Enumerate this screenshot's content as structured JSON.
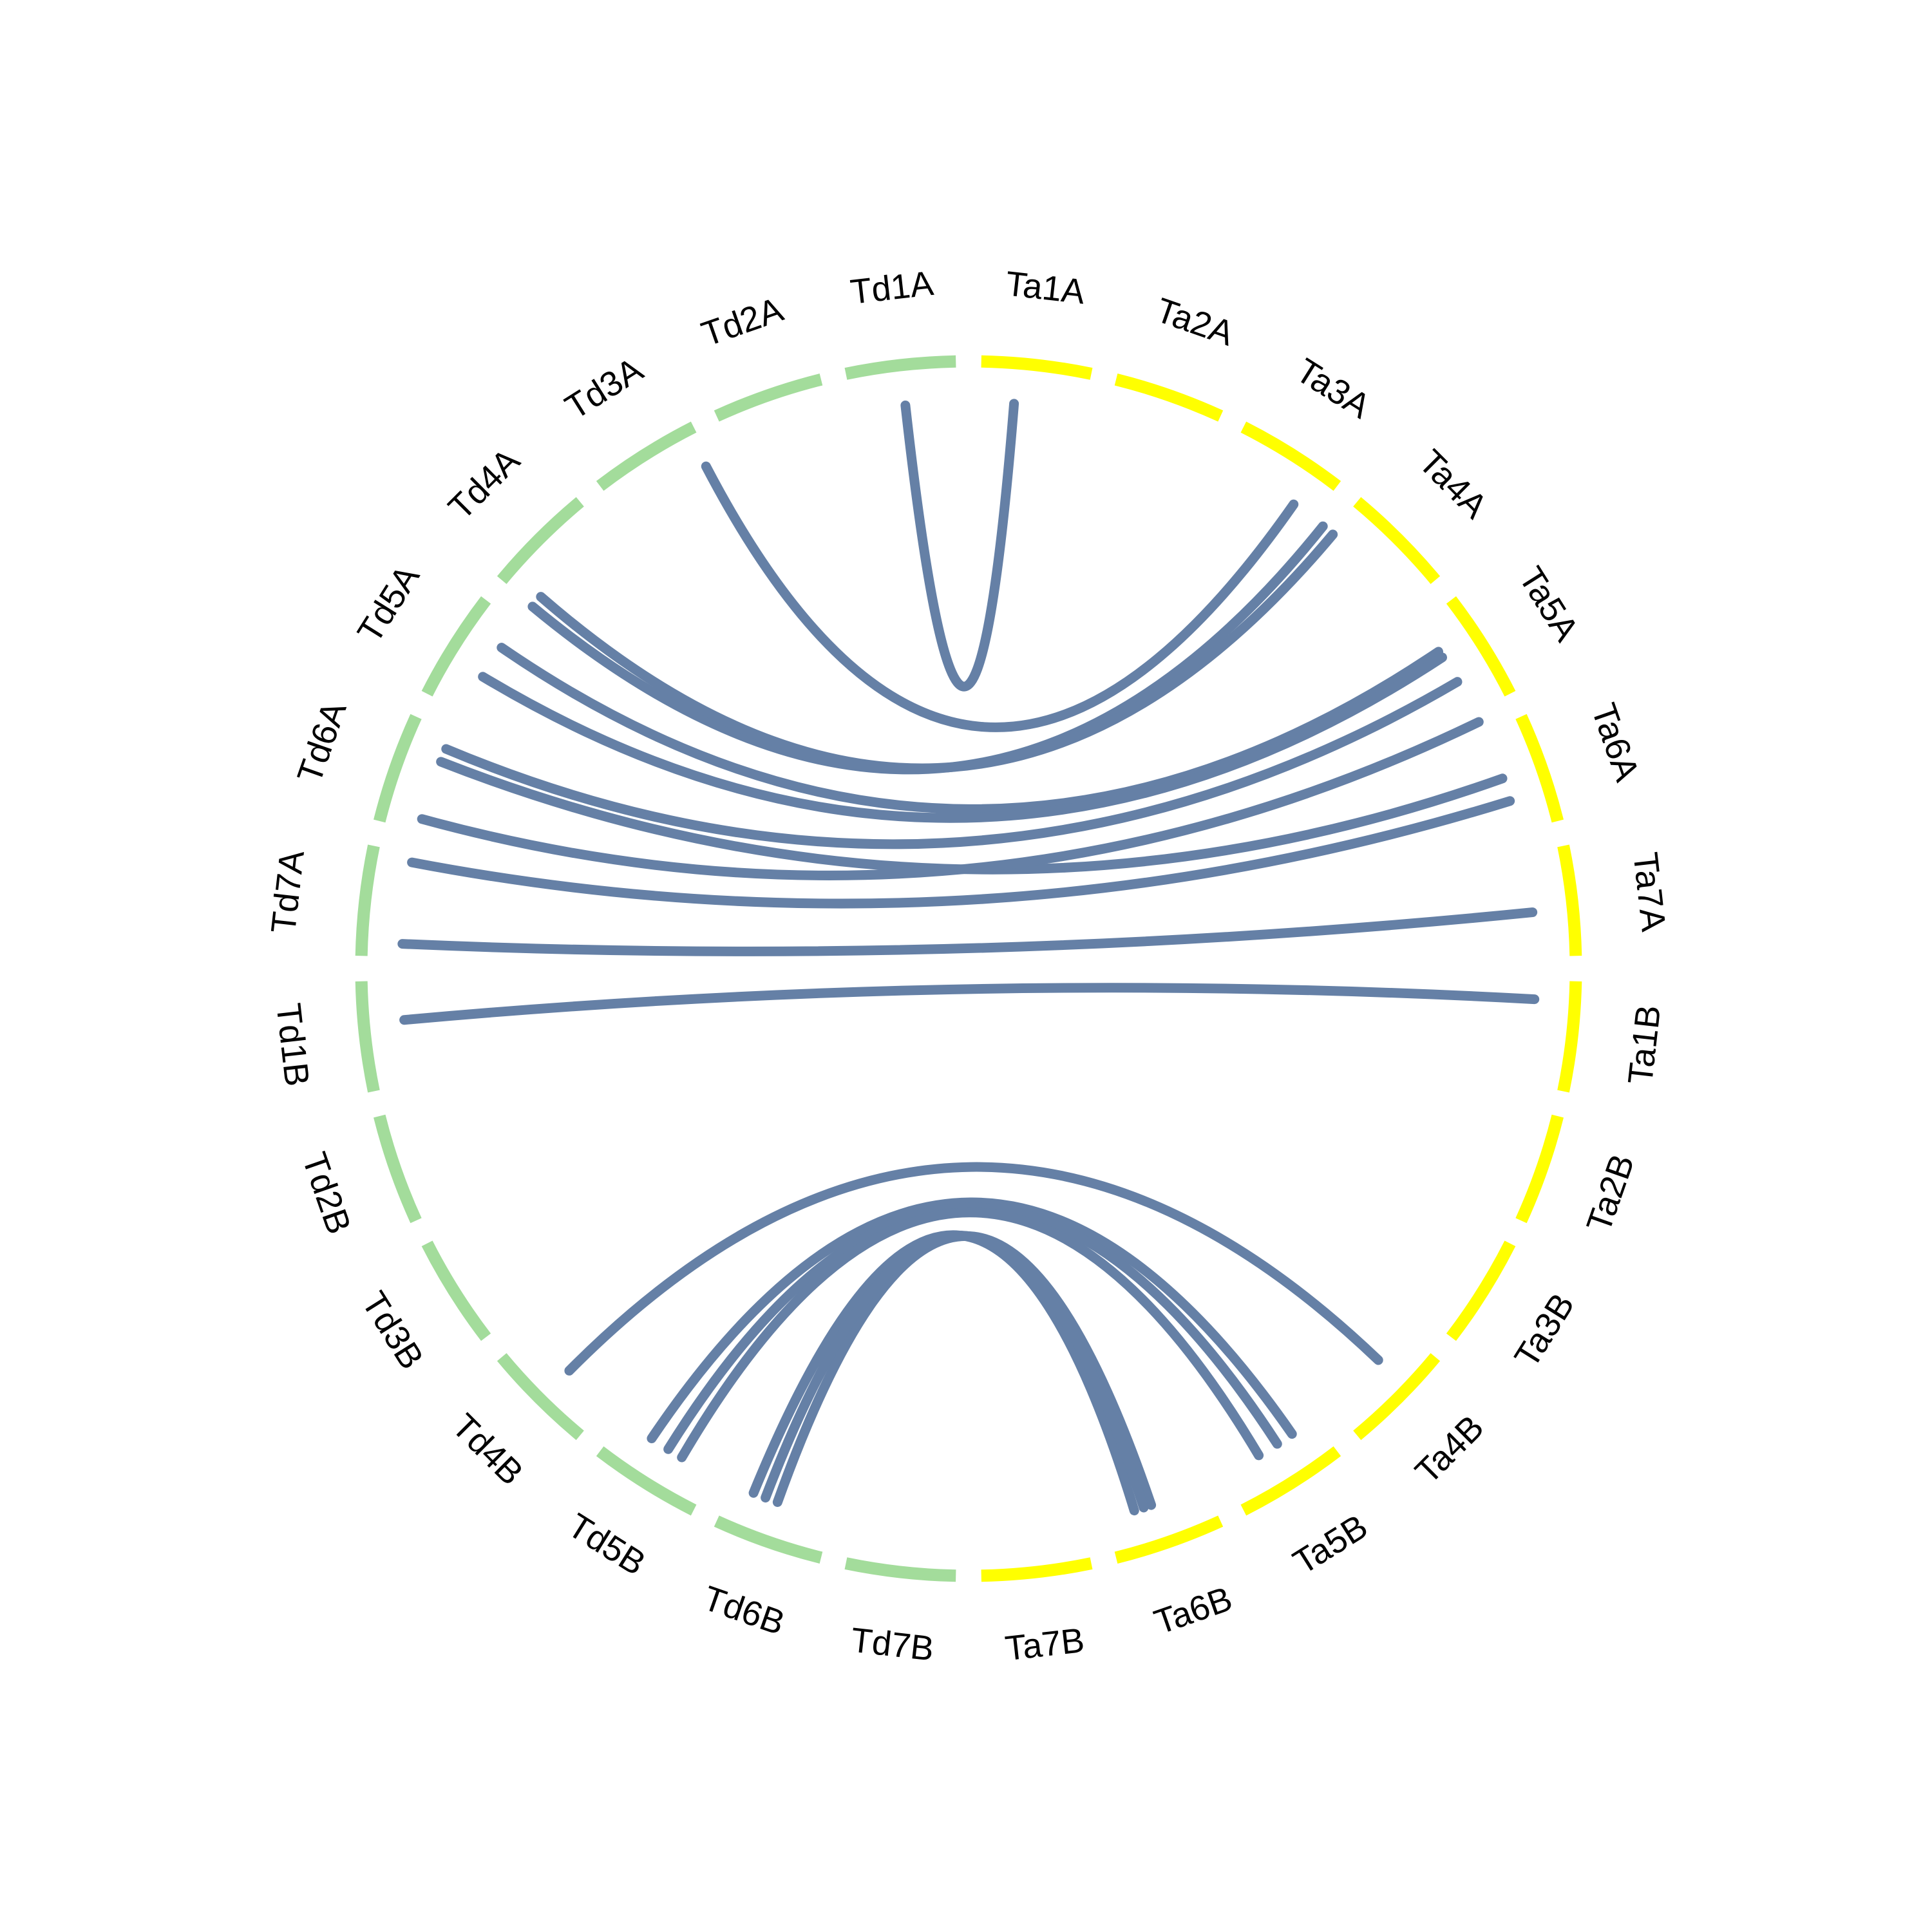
{
  "segments": [
    {
      "label": "Ta1A",
      "color": "#ffff00"
    },
    {
      "label": "Ta2A",
      "color": "#ffff00"
    },
    {
      "label": "Ta3A",
      "color": "#ffff00"
    },
    {
      "label": "Ta4A",
      "color": "#ffff00"
    },
    {
      "label": "Ta5A",
      "color": "#ffff00"
    },
    {
      "label": "Ta6A",
      "color": "#ffff00"
    },
    {
      "label": "Ta7A",
      "color": "#ffff00"
    },
    {
      "label": "Ta1B",
      "color": "#ffff00"
    },
    {
      "label": "Ta2B",
      "color": "#ffff00"
    },
    {
      "label": "Ta3B",
      "color": "#ffff00"
    },
    {
      "label": "Ta4B",
      "color": "#ffff00"
    },
    {
      "label": "Ta5B",
      "color": "#ffff00"
    },
    {
      "label": "Ta6B",
      "color": "#ffff00"
    },
    {
      "label": "Ta7B",
      "color": "#ffff00"
    },
    {
      "label": "Td7B",
      "color": "#a3dc9b"
    },
    {
      "label": "Td6B",
      "color": "#a3dc9b"
    },
    {
      "label": "Td5B",
      "color": "#a3dc9b"
    },
    {
      "label": "Td4B",
      "color": "#a3dc9b"
    },
    {
      "label": "Td3B",
      "color": "#a3dc9b"
    },
    {
      "label": "Td2B",
      "color": "#a3dc9b"
    },
    {
      "label": "Td1B",
      "color": "#a3dc9b"
    },
    {
      "label": "Td7A",
      "color": "#a3dc9b"
    },
    {
      "label": "Td6A",
      "color": "#a3dc9b"
    },
    {
      "label": "Td5A",
      "color": "#a3dc9b"
    },
    {
      "label": "Td4A",
      "color": "#a3dc9b"
    },
    {
      "label": "Td3A",
      "color": "#a3dc9b"
    },
    {
      "label": "Td2A",
      "color": "#a3dc9b"
    },
    {
      "label": "Td1A",
      "color": "#a3dc9b"
    }
  ],
  "link_color": "#6580a6"
}
